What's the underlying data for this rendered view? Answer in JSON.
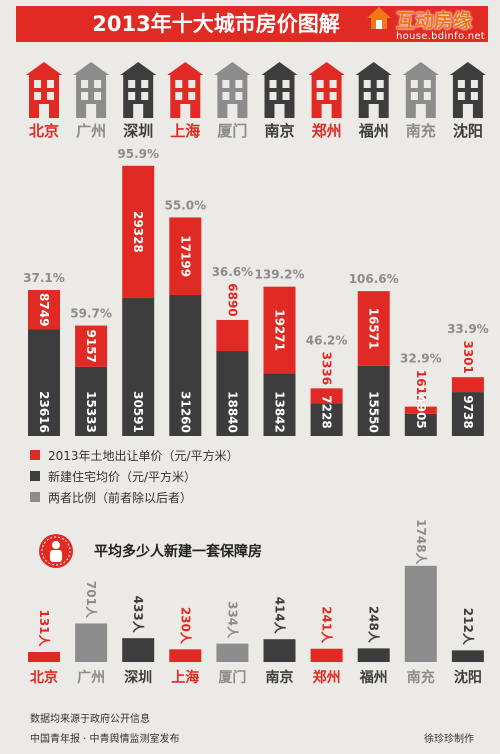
{
  "page": {
    "title": "2013年十大城市房价图解",
    "logo_text": "互动房缘",
    "logo_url": "house.bdinfo.net",
    "source_note": "数据均来源于政府公开信息",
    "publisher_note": "中国青年报 · 中青舆情监测室发布",
    "author_note": "徐珍珍制作"
  },
  "colors": {
    "red": "#e12a23",
    "dark": "#3d3d3d",
    "gray": "#8c8c8c",
    "light_gray": "#a9a9a9",
    "banner": "#e12a23"
  },
  "chart_data": [
    {
      "type": "bar",
      "categories": [
        "北京",
        "广州",
        "深圳",
        "上海",
        "厦门",
        "南京",
        "郑州",
        "福州",
        "南充",
        "沈阳"
      ],
      "category_colors": [
        "red",
        "gray",
        "dark",
        "red",
        "gray",
        "dark",
        "red",
        "dark",
        "gray",
        "dark"
      ],
      "house_icons": [
        "house-icon",
        "house-icon",
        "house-icon",
        "house-icon",
        "house-icon",
        "house-icon",
        "house-icon",
        "house-icon",
        "house-icon",
        "house-icon"
      ],
      "series": [
        {
          "name": "2013年土地出让单价（元/平方米）",
          "color": "#e12a23",
          "values": [
            8749,
            9157,
            29328,
            17199,
            6890,
            19271,
            3336,
            16571,
            1612,
            3301
          ]
        },
        {
          "name": "新建住宅均价（元/平方米）",
          "color": "#3d3d3d",
          "values": [
            23616,
            15333,
            30591,
            31260,
            18840,
            13842,
            7228,
            15550,
            4905,
            9738
          ]
        },
        {
          "name": "两者比例（前者除以后者）",
          "color": "#8c8c8c",
          "values": [
            "37.1%",
            "59.7%",
            "95.9%",
            "55.0%",
            "36.6%",
            "139.2%",
            "46.2%",
            "106.6%",
            "32.9%",
            "33.9%"
          ]
        }
      ],
      "stacked": true
    },
    {
      "type": "bar",
      "title": "平均多少人新建一套保障房",
      "categories": [
        "北京",
        "广州",
        "深圳",
        "上海",
        "厦门",
        "南京",
        "郑州",
        "福州",
        "南充",
        "沈阳"
      ],
      "category_colors": [
        "red",
        "gray",
        "dark",
        "red",
        "gray",
        "dark",
        "red",
        "dark",
        "gray",
        "dark"
      ],
      "values": [
        131,
        701,
        433,
        230,
        334,
        414,
        241,
        248,
        1748,
        212
      ],
      "labels": [
        "131人",
        "701人",
        "433人",
        "230人",
        "334人",
        "414人",
        "241人",
        "248人",
        "1748人",
        "212人"
      ]
    }
  ]
}
